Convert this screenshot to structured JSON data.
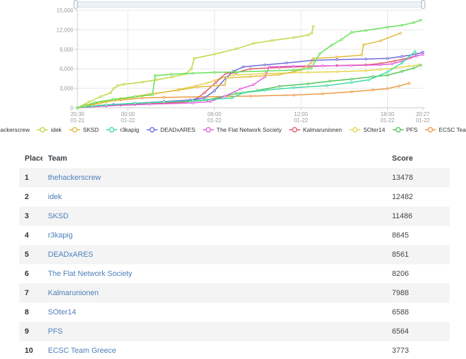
{
  "chart": {
    "y_axis": {
      "ticks": [
        {
          "v": 0,
          "label": "0"
        },
        {
          "v": 3000,
          "label": "3,000"
        },
        {
          "v": 6000,
          "label": "6,000"
        },
        {
          "v": 9000,
          "label": "9,000"
        },
        {
          "v": 12000,
          "label": "12,000"
        },
        {
          "v": 15000,
          "label": "15,000"
        }
      ]
    },
    "x_axis": {
      "ticks": [
        {
          "h": 0,
          "time": "20:30",
          "date": "01-21",
          "grid": false
        },
        {
          "h": 3.5,
          "time": "00:00",
          "date": "01-22",
          "grid": true
        },
        {
          "h": 9.5,
          "time": "06:00",
          "date": "01-22",
          "grid": true
        },
        {
          "h": 15.5,
          "time": "12:00",
          "date": "01-22",
          "grid": true
        },
        {
          "h": 21.5,
          "time": "18:00",
          "date": "01-22",
          "grid": true
        },
        {
          "h": 23.95,
          "time": "20:27",
          "date": "01-22",
          "grid": false
        }
      ]
    },
    "colors": {
      "grid_line": "#e7e7e7",
      "axis_line": "#cccccc",
      "tick_label": "#999999",
      "slider_track": "#eef2f7",
      "slider_border": "#d8e0ea",
      "slider_handle_fill": "#fbfcfe",
      "slider_handle_stroke": "#9fb0c2"
    }
  },
  "chart_data": {
    "type": "line",
    "title": "",
    "xlabel": "",
    "ylabel": "",
    "ylim": [
      0,
      15000
    ],
    "x_unit": "hours_since_start",
    "x_start": "01-21 20:30",
    "x_end": "01-22 20:27",
    "x_span_hours": 23.95,
    "grid": true,
    "legend_position": "bottom",
    "series": [
      {
        "name": "thehackerscrew",
        "color": "#61e156",
        "final_score": 13478,
        "points": [
          [
            0,
            0
          ],
          [
            0.5,
            300
          ],
          [
            1.2,
            800
          ],
          [
            2.5,
            1300
          ],
          [
            4,
            1700
          ],
          [
            5.2,
            2000
          ],
          [
            5.4,
            4950
          ],
          [
            6.5,
            5150
          ],
          [
            8,
            5300
          ],
          [
            9.5,
            5450
          ],
          [
            11,
            5500
          ],
          [
            13,
            5650
          ],
          [
            15,
            5800
          ],
          [
            16.2,
            6050
          ],
          [
            16.8,
            8300
          ],
          [
            17.6,
            9600
          ],
          [
            18.3,
            10500
          ],
          [
            19,
            11600
          ],
          [
            20,
            11900
          ],
          [
            21.5,
            12400
          ],
          [
            22.5,
            12700
          ],
          [
            23.3,
            13100
          ],
          [
            23.8,
            13478
          ]
        ]
      },
      {
        "name": "idek",
        "color": "#bdd83f",
        "final_score": 12482,
        "points": [
          [
            0,
            0
          ],
          [
            0.8,
            900
          ],
          [
            1.6,
            1700
          ],
          [
            2.3,
            2300
          ],
          [
            2.5,
            2950
          ],
          [
            2.8,
            3400
          ],
          [
            3.2,
            3600
          ],
          [
            4.5,
            3950
          ],
          [
            5.5,
            4300
          ],
          [
            6.6,
            4750
          ],
          [
            7.5,
            5200
          ],
          [
            7.9,
            6000
          ],
          [
            8.1,
            7600
          ],
          [
            9.5,
            8250
          ],
          [
            11,
            9050
          ],
          [
            12.2,
            9900
          ],
          [
            13.5,
            10350
          ],
          [
            15,
            10800
          ],
          [
            16,
            11200
          ],
          [
            16.25,
            11500
          ],
          [
            16.35,
            12482
          ]
        ]
      },
      {
        "name": "SKSD",
        "color": "#e0ba3a",
        "final_score": 11486,
        "points": [
          [
            0,
            0
          ],
          [
            1.5,
            700
          ],
          [
            3,
            1400
          ],
          [
            5,
            2100
          ],
          [
            7,
            2700
          ],
          [
            8.3,
            3200
          ],
          [
            10.2,
            3500
          ],
          [
            10.35,
            4600
          ],
          [
            12,
            4800
          ],
          [
            14,
            5100
          ],
          [
            15.5,
            5800
          ],
          [
            16.2,
            6900
          ],
          [
            16.35,
            7600
          ],
          [
            18,
            7800
          ],
          [
            19.7,
            8100
          ],
          [
            19.85,
            9700
          ],
          [
            21,
            10300
          ],
          [
            22.4,
            11486
          ]
        ]
      },
      {
        "name": "r3kapig",
        "color": "#3ddaa2",
        "final_score": 8645,
        "points": [
          [
            0,
            0
          ],
          [
            1,
            250
          ],
          [
            2,
            450
          ],
          [
            4,
            700
          ],
          [
            6,
            900
          ],
          [
            8,
            1100
          ],
          [
            10.7,
            1500
          ],
          [
            11.5,
            2300
          ],
          [
            13,
            2700
          ],
          [
            15,
            3100
          ],
          [
            17.3,
            3400
          ],
          [
            19,
            3900
          ],
          [
            20.2,
            4300
          ],
          [
            21.5,
            5500
          ],
          [
            22.5,
            6900
          ],
          [
            23.4,
            8645
          ]
        ]
      },
      {
        "name": "DEADxARES",
        "color": "#6b6ad8",
        "final_score": 8561,
        "points": [
          [
            0,
            0
          ],
          [
            1,
            250
          ],
          [
            2.5,
            500
          ],
          [
            4,
            700
          ],
          [
            6,
            950
          ],
          [
            7.8,
            1200
          ],
          [
            8.8,
            1500
          ],
          [
            9.5,
            2600
          ],
          [
            10.3,
            4600
          ],
          [
            10.8,
            5600
          ],
          [
            11.5,
            6300
          ],
          [
            13,
            6600
          ],
          [
            14.5,
            6900
          ],
          [
            16.3,
            7300
          ],
          [
            18,
            7400
          ],
          [
            20,
            7500
          ],
          [
            21.5,
            7600
          ],
          [
            22.5,
            7900
          ],
          [
            23.5,
            8250
          ],
          [
            23.95,
            8561
          ]
        ]
      },
      {
        "name": "The Flat Network Society",
        "color": "#e55ddf",
        "final_score": 8206,
        "points": [
          [
            0,
            0
          ],
          [
            2,
            300
          ],
          [
            5,
            550
          ],
          [
            8,
            750
          ],
          [
            9.2,
            950
          ],
          [
            10.2,
            1750
          ],
          [
            11.3,
            2900
          ],
          [
            12.2,
            3550
          ],
          [
            13,
            4750
          ],
          [
            13.3,
            6300
          ],
          [
            15,
            6400
          ],
          [
            17,
            6450
          ],
          [
            19,
            6500
          ],
          [
            21,
            6600
          ],
          [
            21.8,
            6750
          ],
          [
            22.6,
            7250
          ],
          [
            23.5,
            7950
          ],
          [
            23.95,
            8206
          ]
        ]
      },
      {
        "name": "Kalmarunionen",
        "color": "#df5968",
        "final_score": 7988,
        "points": [
          [
            0,
            0
          ],
          [
            2,
            300
          ],
          [
            4,
            520
          ],
          [
            6,
            720
          ],
          [
            7.5,
            950
          ],
          [
            8.2,
            1300
          ],
          [
            8.8,
            2300
          ],
          [
            9.6,
            3900
          ],
          [
            10.3,
            5300
          ],
          [
            11,
            5400
          ],
          [
            12,
            6000
          ],
          [
            14,
            6200
          ],
          [
            16,
            6340
          ],
          [
            18,
            6500
          ],
          [
            20,
            6600
          ],
          [
            21,
            6800
          ],
          [
            22,
            7200
          ],
          [
            23,
            7700
          ],
          [
            23.5,
            7988
          ]
        ]
      },
      {
        "name": "SOter14",
        "color": "#e6d44b",
        "final_score": 6588,
        "points": [
          [
            0,
            0
          ],
          [
            1.5,
            650
          ],
          [
            3,
            1300
          ],
          [
            5,
            2000
          ],
          [
            7,
            2800
          ],
          [
            9,
            3800
          ],
          [
            10,
            4600
          ],
          [
            10.8,
            5050
          ],
          [
            13,
            5250
          ],
          [
            16,
            5450
          ],
          [
            18,
            5550
          ],
          [
            20,
            5700
          ],
          [
            21,
            5900
          ],
          [
            22,
            6100
          ],
          [
            23,
            6400
          ],
          [
            23.6,
            6588
          ]
        ]
      },
      {
        "name": "PFS",
        "color": "#4cc654",
        "final_score": 6564,
        "points": [
          [
            0,
            0
          ],
          [
            1,
            200
          ],
          [
            3,
            420
          ],
          [
            5,
            620
          ],
          [
            7,
            820
          ],
          [
            9,
            1200
          ],
          [
            11,
            2200
          ],
          [
            12.5,
            2650
          ],
          [
            14,
            3300
          ],
          [
            16,
            3700
          ],
          [
            17.5,
            4100
          ],
          [
            19,
            4400
          ],
          [
            20.5,
            4800
          ],
          [
            21.5,
            5000
          ],
          [
            22.5,
            5600
          ],
          [
            23.3,
            6100
          ],
          [
            23.8,
            6564
          ]
        ]
      },
      {
        "name": "ECSC Team Greece",
        "color": "#ec9a44",
        "final_score": 3773,
        "points": [
          [
            0,
            0
          ],
          [
            0.6,
            420
          ],
          [
            1.6,
            820
          ],
          [
            3,
            1200
          ],
          [
            4.5,
            1500
          ],
          [
            6,
            1600
          ],
          [
            9,
            1700
          ],
          [
            12,
            1800
          ],
          [
            15,
            1950
          ],
          [
            17,
            2150
          ],
          [
            19,
            2450
          ],
          [
            20.5,
            2750
          ],
          [
            21.5,
            2950
          ],
          [
            22.3,
            3350
          ],
          [
            23,
            3773
          ]
        ]
      }
    ]
  },
  "table": {
    "headers": [
      "Place",
      "Team",
      "Score"
    ],
    "rows": [
      {
        "place": "1",
        "team": "thehackerscrew",
        "score": "13478"
      },
      {
        "place": "2",
        "team": "idek",
        "score": "12482"
      },
      {
        "place": "3",
        "team": "SKSD",
        "score": "11486"
      },
      {
        "place": "4",
        "team": "r3kapig",
        "score": "8645"
      },
      {
        "place": "5",
        "team": "DEADxARES",
        "score": "8561"
      },
      {
        "place": "6",
        "team": "The Flat Network Society",
        "score": "8206"
      },
      {
        "place": "7",
        "team": "Kalmarunionen",
        "score": "7988"
      },
      {
        "place": "8",
        "team": "SOter14",
        "score": "6588"
      },
      {
        "place": "9",
        "team": "PFS",
        "score": "6564"
      },
      {
        "place": "10",
        "team": "ECSC Team Greece",
        "score": "3773"
      }
    ]
  }
}
